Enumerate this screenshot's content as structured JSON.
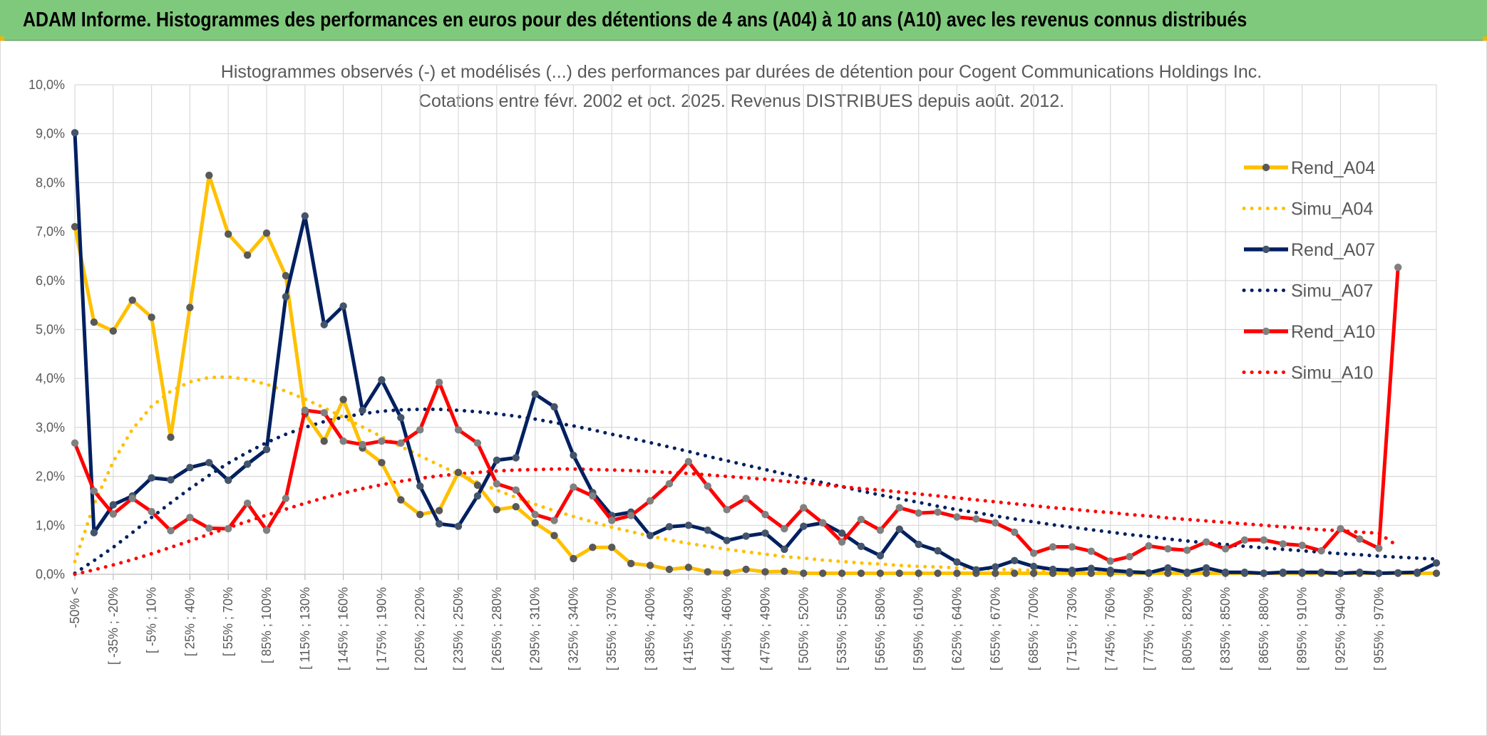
{
  "banner": {
    "title": "ADAM Informe. Histogrammes des performances en euros pour des détentions de 4 ans (A04) à 10 ans (A10) avec les revenus connus distribués"
  },
  "colors": {
    "banner_bg": "#7fc97c",
    "A04": "#ffc000",
    "A07": "#002060",
    "A10": "#ff0000",
    "grid": "#d9d9d9",
    "text": "#595959"
  },
  "chart_data": {
    "type": "line",
    "title": "Histogrammes observés (-) et modélisés (...) des performances par durées de détention pour Cogent Communications Holdings Inc.",
    "subtitle": "Cotations entre févr. 2002 et oct. 2025. Revenus DISTRIBUES depuis août. 2012.",
    "ylim": [
      0,
      10
    ],
    "ytick_step": 1,
    "ytick_labels": [
      "0,0%",
      "1,0%",
      "2,0%",
      "3,0%",
      "4,0%",
      "5,0%",
      "6,0%",
      "7,0%",
      "8,0%",
      "9,0%",
      "10,0%"
    ],
    "xtick_labels": [
      "-50% <",
      "[ -35% ; -20%",
      "[ -5% ; 10%",
      "[ 25% ; 40%",
      "[ 55% ; 70%",
      "[ 85% ; 100%",
      "[ 115% ; 130%",
      "[ 145% ; 160%",
      "[ 175% ; 190%",
      "[ 205% ; 220%",
      "[ 235% ; 250%",
      "[ 265% ; 280%",
      "[ 295% ; 310%",
      "[ 325% ; 340%",
      "[ 355% ; 370%",
      "[ 385% ; 400%",
      "[ 415% ; 430%",
      "[ 445% ; 460%",
      "[ 475% ; 490%",
      "[ 505% ; 520%",
      "[ 535% ; 550%",
      "[ 565% ; 580%",
      "[ 595% ; 610%",
      "[ 625% ; 640%",
      "[ 655% ; 670%",
      "[ 685% ; 700%",
      "[ 715% ; 730%",
      "[ 745% ; 760%",
      "[ 775% ; 790%",
      "[ 805% ; 820%",
      "[ 835% ; 850%",
      "[ 865% ; 880%",
      "[ 895% ; 910%",
      "[ 925% ; 940%",
      "[ 955% ; 970%"
    ],
    "legend_position": "right",
    "series": [
      {
        "name": "Rend_A04",
        "style": "solid",
        "color": "#ffc000",
        "values": [
          7.1,
          5.15,
          4.97,
          5.6,
          5.25,
          2.8,
          5.45,
          8.15,
          6.95,
          6.52,
          6.97,
          6.1,
          3.28,
          2.72,
          3.57,
          2.58,
          2.28,
          1.52,
          1.22,
          1.3,
          2.08,
          1.82,
          1.32,
          1.38,
          1.05,
          0.79,
          0.32,
          0.55,
          0.55,
          0.22,
          0.18,
          0.1,
          0.14,
          0.05,
          0.03,
          0.1,
          0.05,
          0.06,
          0.02,
          0.02,
          0.02,
          0.02,
          0.02,
          0.02,
          0.02,
          0.02,
          0.02,
          0.02,
          0.02,
          0.02,
          0.02,
          0.02,
          0.02,
          0.02,
          0.02,
          0.02,
          0.02,
          0.02,
          0.02,
          0.02,
          0.02,
          0.02,
          0.02,
          0.02,
          0.02,
          0.02,
          0.02,
          0.02,
          0.02,
          0.02,
          0.02,
          0.02
        ]
      },
      {
        "name": "Simu_A04",
        "style": "dotted",
        "color": "#ffc000",
        "values": [
          0.26,
          1.43,
          2.3,
          2.96,
          3.43,
          3.74,
          3.93,
          4.02,
          4.03,
          3.98,
          3.88,
          3.74,
          3.58,
          3.4,
          3.21,
          3.01,
          2.81,
          2.61,
          2.42,
          2.23,
          2.05,
          1.88,
          1.72,
          1.57,
          1.43,
          1.3,
          1.18,
          1.07,
          0.96,
          0.87,
          0.78,
          0.7,
          0.63,
          0.57,
          0.51,
          0.46,
          0.41,
          0.36,
          0.33,
          0.29,
          0.26,
          0.23,
          0.21,
          0.18,
          0.16,
          0.15,
          0.13,
          0.12,
          0.1,
          0.09,
          0.08,
          0.07,
          0.06,
          0.06,
          0.05,
          0.05,
          0.04,
          0.04,
          0.03,
          0.03,
          0.03,
          0.02,
          0.02,
          0.02,
          0.02,
          0.02,
          0.02,
          0.02,
          0.02,
          0.02,
          0.02,
          0.02
        ]
      },
      {
        "name": "Rend_A07",
        "style": "solid",
        "color": "#002060",
        "values": [
          9.02,
          0.85,
          1.42,
          1.6,
          1.97,
          1.93,
          2.18,
          2.28,
          1.92,
          2.25,
          2.55,
          5.67,
          7.32,
          5.1,
          5.48,
          3.35,
          3.97,
          3.2,
          1.8,
          1.03,
          0.98,
          1.6,
          2.33,
          2.38,
          3.68,
          3.42,
          2.43,
          1.67,
          1.2,
          1.27,
          0.79,
          0.97,
          1.0,
          0.9,
          0.69,
          0.78,
          0.84,
          0.51,
          0.98,
          1.05,
          0.84,
          0.57,
          0.38,
          0.92,
          0.61,
          0.48,
          0.25,
          0.09,
          0.15,
          0.28,
          0.16,
          0.1,
          0.08,
          0.12,
          0.08,
          0.05,
          0.03,
          0.13,
          0.04,
          0.13,
          0.04,
          0.04,
          0.02,
          0.04,
          0.04,
          0.04,
          0.02,
          0.04,
          0.02,
          0.03,
          0.04,
          0.23
        ]
      },
      {
        "name": "Simu_A07",
        "style": "dotted",
        "color": "#002060",
        "values": [
          0.02,
          0.28,
          0.55,
          0.85,
          1.16,
          1.46,
          1.75,
          2.02,
          2.27,
          2.49,
          2.69,
          2.86,
          3.0,
          3.12,
          3.21,
          3.28,
          3.33,
          3.36,
          3.37,
          3.37,
          3.35,
          3.32,
          3.28,
          3.23,
          3.17,
          3.1,
          3.03,
          2.95,
          2.86,
          2.78,
          2.69,
          2.6,
          2.51,
          2.41,
          2.32,
          2.23,
          2.14,
          2.05,
          1.96,
          1.87,
          1.79,
          1.7,
          1.62,
          1.54,
          1.47,
          1.39,
          1.32,
          1.26,
          1.19,
          1.13,
          1.07,
          1.01,
          0.96,
          0.91,
          0.86,
          0.81,
          0.77,
          0.72,
          0.68,
          0.64,
          0.61,
          0.57,
          0.54,
          0.51,
          0.48,
          0.45,
          0.42,
          0.4,
          0.37,
          0.35,
          0.33,
          0.31
        ]
      },
      {
        "name": "Rend_A10",
        "style": "solid",
        "color": "#ff0000",
        "values": [
          2.68,
          1.7,
          1.23,
          1.55,
          1.28,
          0.89,
          1.16,
          0.94,
          0.93,
          1.45,
          0.9,
          1.55,
          3.35,
          3.3,
          2.72,
          2.65,
          2.72,
          2.68,
          2.95,
          3.92,
          2.95,
          2.68,
          1.85,
          1.72,
          1.22,
          1.1,
          1.78,
          1.6,
          1.1,
          1.2,
          1.5,
          1.85,
          2.3,
          1.8,
          1.32,
          1.55,
          1.22,
          0.93,
          1.36,
          1.05,
          0.66,
          1.12,
          0.9,
          1.36,
          1.25,
          1.27,
          1.17,
          1.13,
          1.05,
          0.86,
          0.43,
          0.56,
          0.56,
          0.47,
          0.27,
          0.36,
          0.58,
          0.52,
          0.49,
          0.66,
          0.52,
          0.7,
          0.7,
          0.62,
          0.59,
          0.48,
          0.93,
          0.72,
          0.53,
          6.27
        ]
      },
      {
        "name": "Simu_A10",
        "style": "dotted",
        "color": "#ff0000",
        "values": [
          0.0,
          0.09,
          0.19,
          0.3,
          0.42,
          0.55,
          0.68,
          0.82,
          0.95,
          1.08,
          1.21,
          1.33,
          1.45,
          1.56,
          1.66,
          1.75,
          1.83,
          1.9,
          1.96,
          2.01,
          2.05,
          2.08,
          2.11,
          2.13,
          2.14,
          2.15,
          2.15,
          2.14,
          2.13,
          2.12,
          2.1,
          2.08,
          2.06,
          2.03,
          2.0,
          1.97,
          1.94,
          1.9,
          1.87,
          1.83,
          1.79,
          1.75,
          1.72,
          1.68,
          1.64,
          1.6,
          1.56,
          1.52,
          1.48,
          1.44,
          1.4,
          1.36,
          1.33,
          1.29,
          1.26,
          1.22,
          1.19,
          1.15,
          1.12,
          1.09,
          1.06,
          1.03,
          1.0,
          0.97,
          0.94,
          0.91,
          0.89,
          0.86,
          0.84,
          0.57
        ]
      }
    ]
  }
}
